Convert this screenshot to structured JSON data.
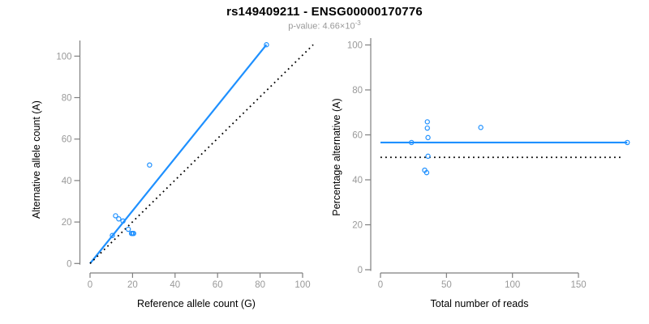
{
  "header": {
    "title": "rs149409211 - ENSG00000170776",
    "subtitle_prefix": "p-value: 4.66",
    "subtitle_times": "×",
    "subtitle_base": "10",
    "subtitle_exponent": "-3"
  },
  "colors": {
    "accent_blue": "#1E90FF",
    "axis_line": "#7F7F7F",
    "tick_label": "#999999",
    "label_text": "#000000",
    "subtitle_text": "#999999",
    "background": "#FFFFFF"
  },
  "chart_data": [
    {
      "type": "scatter",
      "panel": "left",
      "xlabel": "Reference allele count (G)",
      "ylabel": "Alternative allele count (A)",
      "xticks": [
        0,
        20,
        40,
        60,
        80,
        100
      ],
      "yticks": [
        0,
        20,
        40,
        60,
        80,
        100
      ],
      "xlim": [
        0,
        105
      ],
      "ylim": [
        0,
        106
      ],
      "grid": false,
      "legend": "none",
      "points": [
        [
          12,
          23
        ],
        [
          13.5,
          21.5
        ],
        [
          15.5,
          20.5
        ],
        [
          18,
          16.5
        ],
        [
          19.5,
          14.5
        ],
        [
          20,
          14.5
        ],
        [
          20.5,
          14.5
        ],
        [
          10.5,
          13.5
        ],
        [
          28,
          47.5
        ],
        [
          83,
          105.5
        ]
      ],
      "lines": [
        {
          "name": "fitted-ratio",
          "style": "solid",
          "color": "#1E90FF",
          "width": 2.2,
          "from": [
            0,
            0
          ],
          "to": [
            83,
            105.5
          ]
        },
        {
          "name": "identity",
          "style": "dotted",
          "color": "#000000",
          "width": 1.8,
          "from": [
            0,
            0
          ],
          "to": [
            105,
            105.5
          ]
        }
      ]
    },
    {
      "type": "scatter",
      "panel": "right",
      "xlabel": "Total number of reads",
      "ylabel": "Percentage alternative (A)",
      "xticks": [
        0,
        50,
        100,
        150
      ],
      "yticks": [
        0,
        20,
        40,
        60,
        80,
        100
      ],
      "xlim": [
        0,
        190
      ],
      "ylim": [
        0,
        100
      ],
      "grid": false,
      "legend": "none",
      "points": [
        [
          35.5,
          65.8
        ],
        [
          35.5,
          63
        ],
        [
          36,
          58.8
        ],
        [
          23.5,
          56.6
        ],
        [
          76,
          63.3
        ],
        [
          36,
          50.5
        ],
        [
          33.5,
          44.3
        ],
        [
          35,
          43.2
        ],
        [
          187,
          56.6
        ]
      ],
      "lines": [
        {
          "name": "mean-percentage",
          "style": "solid",
          "color": "#1E90FF",
          "width": 2.2,
          "from": [
            0,
            56.6
          ],
          "to": [
            187,
            56.6
          ]
        },
        {
          "name": "expected-50pct",
          "style": "dotted",
          "color": "#000000",
          "width": 1.8,
          "from": [
            0,
            50
          ],
          "to": [
            183,
            50
          ]
        }
      ]
    }
  ]
}
